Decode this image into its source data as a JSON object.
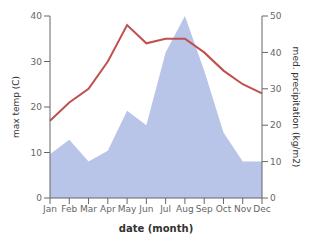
{
  "chart_data": {
    "type": "line",
    "xlabel": "date (month)",
    "ylabel": "max temp (C)",
    "y2label": "med. precipitation (kg/m2)",
    "categories": [
      "Jan",
      "Feb",
      "Mar",
      "Apr",
      "May",
      "Jun",
      "Jul",
      "Aug",
      "Sep",
      "Oct",
      "Nov",
      "Dec"
    ],
    "series": [
      {
        "type": "area",
        "axis": "y2",
        "color": "#b8c4e8",
        "values": [
          12,
          16,
          10,
          13,
          24,
          20,
          40,
          50,
          35,
          18,
          10,
          10
        ]
      },
      {
        "type": "line",
        "color": "#c0504d",
        "values": [
          17,
          21,
          24,
          30,
          38,
          34,
          35,
          35,
          32,
          28,
          25,
          23
        ]
      }
    ],
    "ylim": [
      0,
      40
    ],
    "yticks": [
      0,
      10,
      20,
      30,
      40
    ],
    "y2lim": [
      0,
      50
    ],
    "y2ticks": [
      0,
      10,
      20,
      30,
      40,
      50
    ],
    "grid": false
  }
}
